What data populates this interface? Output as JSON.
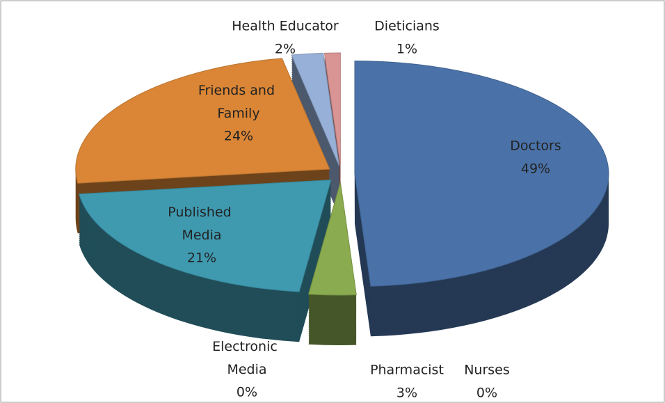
{
  "chart_data": {
    "type": "pie",
    "categories": [
      "Doctors",
      "Nurses",
      "Pharmacist",
      "Electronic Media",
      "Published Media",
      "Friends and Family",
      "Health Educator",
      "Dieticians"
    ],
    "values": [
      49,
      0,
      3,
      0,
      21,
      24,
      2,
      1
    ],
    "value_labels": [
      "49%",
      "0%",
      "3%",
      "0%",
      "21%",
      "24%",
      "2%",
      "1%"
    ],
    "colors": [
      "#4a72a8",
      "#b04a48",
      "#8aab4f",
      "#7a5b9a",
      "#3f9ab0",
      "#da8636",
      "#97b0d8",
      "#d99594"
    ]
  }
}
